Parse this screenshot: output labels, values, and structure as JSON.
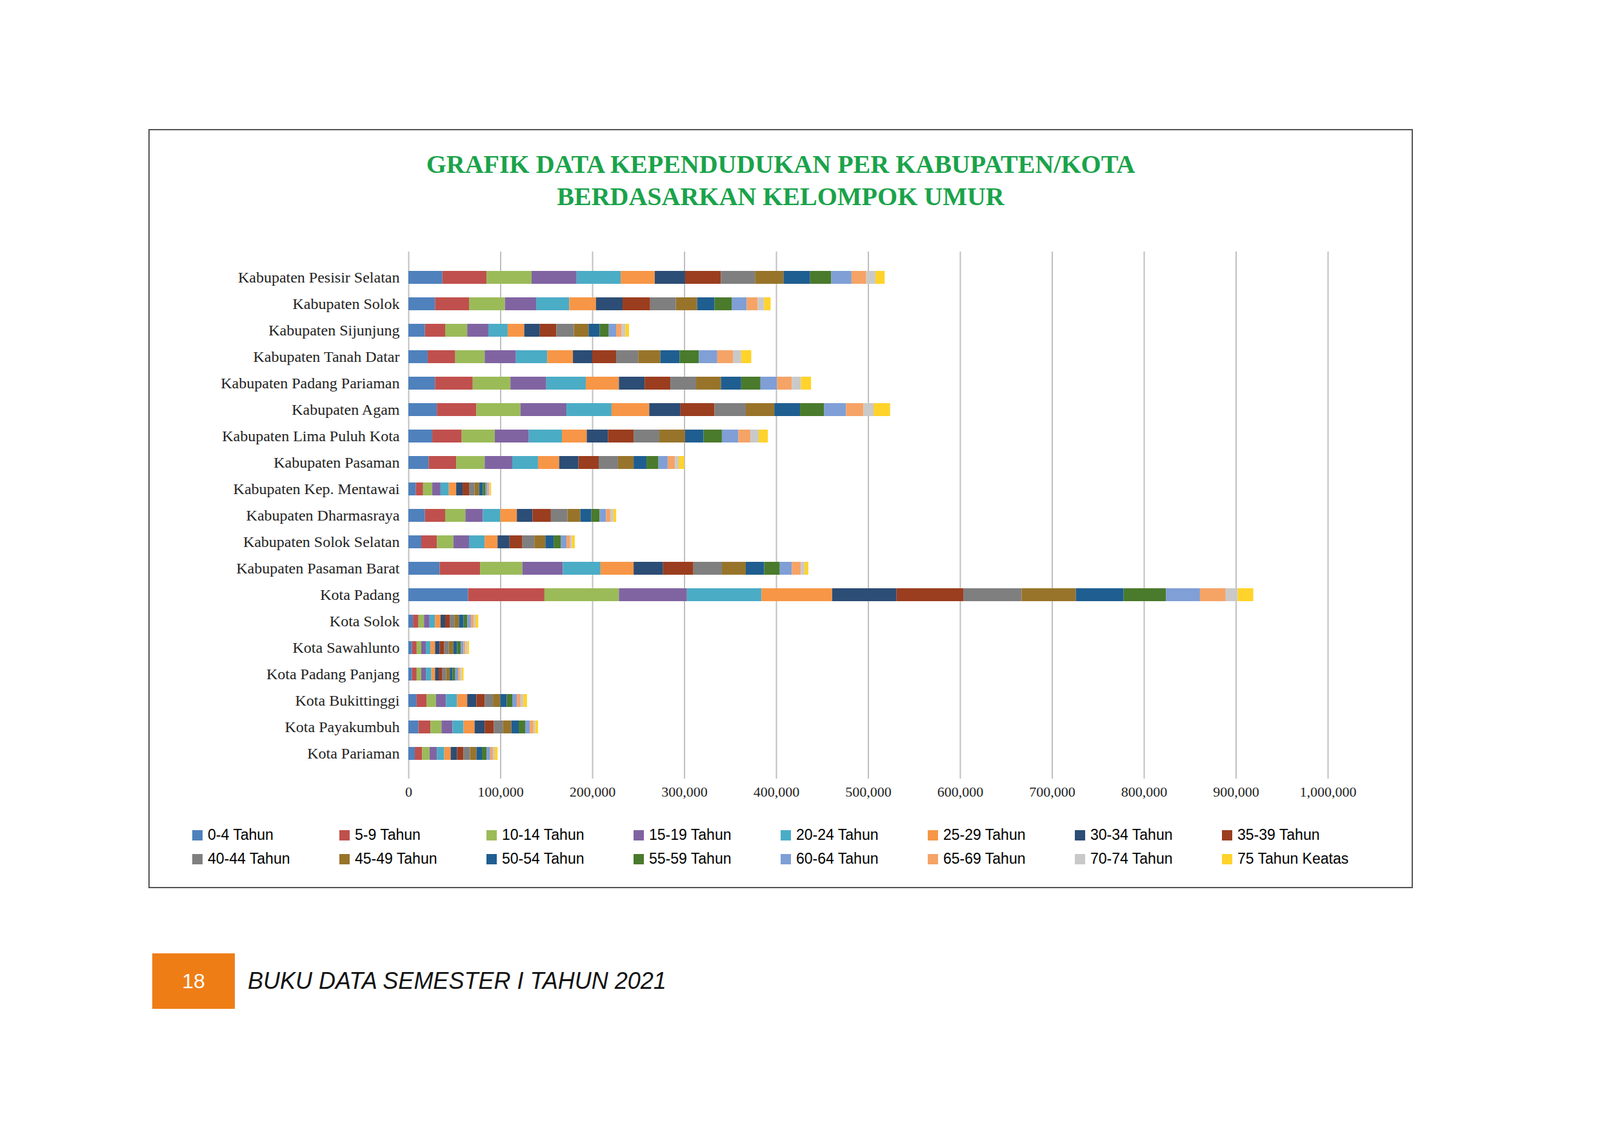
{
  "chart_data": {
    "type": "bar",
    "orientation": "horizontal",
    "stacked": true,
    "grid": true,
    "legend": "bottom",
    "title": "GRAFIK DATA KEPENDUDUKAN PER KABUPATEN/KOTA",
    "subtitle": "BERDASARKAN KELOMPOK UMUR",
    "categories": [
      "Kabupaten Pesisir Selatan",
      "Kabupaten Solok",
      "Kabupaten Sijunjung",
      "Kabupaten Tanah Datar",
      "Kabupaten Padang Pariaman",
      "Kabupaten Agam",
      "Kabupaten Lima Puluh Kota",
      "Kabupaten Pasaman",
      "Kabupaten Kep. Mentawai",
      "Kabupaten Dharmasraya",
      "Kabupaten Solok Selatan",
      "Kabupaten Pasaman Barat",
      "Kota Padang",
      "Kota Solok",
      "Kota Sawahlunto",
      "Kota Padang Panjang",
      "Kota Bukittinggi",
      "Kota Payakumbuh",
      "Kota Pariaman"
    ],
    "series": [
      {
        "name": "0-4 Tahun",
        "color": "#4f81bd",
        "values": [
          37000,
          29000,
          18000,
          21000,
          29000,
          31000,
          26000,
          22000,
          8000,
          18000,
          14000,
          34000,
          65000,
          5000,
          4000,
          4000,
          9000,
          11000,
          7000
        ]
      },
      {
        "name": "5-9 Tahun",
        "color": "#c0504d",
        "values": [
          48000,
          37000,
          22000,
          30000,
          41000,
          43000,
          32000,
          30000,
          8000,
          22000,
          17000,
          44000,
          83000,
          6000,
          5000,
          5000,
          11000,
          13000,
          8000
        ]
      },
      {
        "name": "10-14 Tahun",
        "color": "#9bbb59",
        "values": [
          49000,
          39000,
          24000,
          32000,
          41000,
          48000,
          36000,
          31000,
          10000,
          22000,
          18000,
          46000,
          81000,
          6000,
          5000,
          5000,
          10000,
          12000,
          8000
        ]
      },
      {
        "name": "15-19 Tahun",
        "color": "#8064a2",
        "values": [
          49000,
          34000,
          23000,
          34000,
          39000,
          50000,
          37000,
          30000,
          9000,
          19000,
          17000,
          44000,
          74000,
          6000,
          5000,
          5000,
          11000,
          12000,
          8000
        ]
      },
      {
        "name": "20-24 Tahun",
        "color": "#4bacc6",
        "values": [
          48000,
          36000,
          21000,
          34000,
          43000,
          49000,
          36000,
          28000,
          9000,
          19000,
          17000,
          41000,
          81000,
          6000,
          5000,
          6000,
          12000,
          12000,
          8000
        ]
      },
      {
        "name": "25-29 Tahun",
        "color": "#f79646",
        "values": [
          37000,
          29000,
          18000,
          28000,
          36000,
          41000,
          27000,
          23000,
          8000,
          18000,
          14000,
          36000,
          77000,
          6000,
          5000,
          4000,
          11000,
          12000,
          7000
        ]
      },
      {
        "name": "30-34 Tahun",
        "color": "#2c4d75",
        "values": [
          33000,
          29000,
          17000,
          21000,
          28000,
          34000,
          23000,
          21000,
          7000,
          17000,
          13000,
          32000,
          70000,
          5000,
          5000,
          4000,
          10000,
          11000,
          7000
        ]
      },
      {
        "name": "35-39 Tahun",
        "color": "#9b3d1f",
        "values": [
          39000,
          30000,
          18000,
          26000,
          28000,
          37000,
          28000,
          22000,
          7000,
          20000,
          14000,
          33000,
          73000,
          5000,
          5000,
          4000,
          9000,
          10000,
          7000
        ]
      },
      {
        "name": "40-44 Tahun",
        "color": "#7f7f7f",
        "values": [
          37000,
          28000,
          19000,
          24000,
          28000,
          34000,
          28000,
          21000,
          6000,
          18000,
          13000,
          31000,
          63000,
          5000,
          5000,
          4000,
          9000,
          10000,
          7000
        ]
      },
      {
        "name": "45-49 Tahun",
        "color": "#98742a",
        "values": [
          31000,
          23000,
          16000,
          24000,
          27000,
          31000,
          28000,
          17000,
          5000,
          14000,
          12000,
          26000,
          59000,
          5000,
          5000,
          4000,
          8000,
          9000,
          7000
        ]
      },
      {
        "name": "50-54 Tahun",
        "color": "#1f5e91",
        "values": [
          29000,
          19000,
          12000,
          21000,
          22000,
          28000,
          20000,
          14000,
          4000,
          12000,
          9000,
          20000,
          52000,
          5000,
          4000,
          3000,
          7000,
          8000,
          6000
        ]
      },
      {
        "name": "55-59 Tahun",
        "color": "#4a7a2c",
        "values": [
          23000,
          19000,
          10000,
          21000,
          21000,
          26000,
          20000,
          13000,
          3000,
          9000,
          8000,
          17000,
          46000,
          4000,
          4000,
          3000,
          6000,
          7000,
          5000
        ]
      },
      {
        "name": "60-64 Tahun",
        "color": "#7f9fd6",
        "values": [
          22000,
          16000,
          8000,
          20000,
          18000,
          24000,
          18000,
          10000,
          2000,
          7000,
          6000,
          13000,
          37000,
          4000,
          3000,
          3000,
          5000,
          5000,
          4000
        ]
      },
      {
        "name": "65-69 Tahun",
        "color": "#f6a366",
        "values": [
          16000,
          12000,
          6000,
          17000,
          16000,
          19000,
          13000,
          8000,
          2000,
          5000,
          4000,
          10000,
          28000,
          3000,
          2000,
          2000,
          4000,
          4000,
          3000
        ]
      },
      {
        "name": "70-74 Tahun",
        "color": "#c9c9c9",
        "values": [
          10000,
          7000,
          4000,
          9000,
          10000,
          11000,
          9000,
          4000,
          1000,
          3000,
          2000,
          4000,
          13000,
          2000,
          2000,
          2000,
          3000,
          2000,
          2000
        ]
      },
      {
        "name": "75 Tahun Keatas",
        "color": "#ffd32a",
        "values": [
          10000,
          7000,
          4000,
          11000,
          11000,
          18000,
          10000,
          6000,
          1000,
          3000,
          3000,
          4000,
          17000,
          3000,
          2000,
          2000,
          4000,
          3000,
          3000
        ]
      }
    ],
    "xlim": [
      0,
      1000000
    ],
    "xticks": [
      0,
      {
        "value": 100000,
        "label": "100,000"
      },
      {
        "value": 200000,
        "label": "200,000"
      },
      {
        "value": 300000,
        "label": "300,000"
      },
      {
        "value": 400000,
        "label": "400,000"
      },
      {
        "value": 500000,
        "label": "500,000"
      },
      {
        "value": 600000,
        "label": "600,000"
      },
      {
        "value": 700000,
        "label": "700,000"
      },
      {
        "value": 800000,
        "label": "800,000"
      },
      {
        "value": 900000,
        "label": "900,000"
      },
      {
        "value": 1000000,
        "label": "1,000,000"
      }
    ]
  },
  "footer": {
    "page": "18",
    "text": "BUKU DATA SEMESTER I TAHUN 2021"
  }
}
